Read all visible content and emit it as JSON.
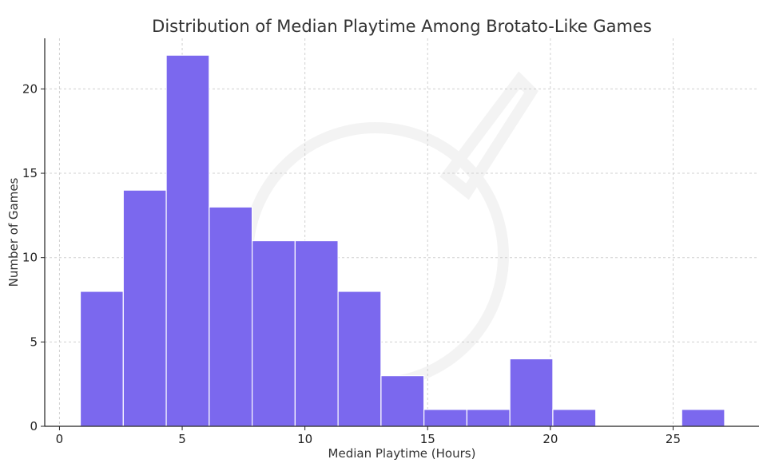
{
  "chart_data": {
    "type": "bar",
    "subtype": "histogram",
    "title": "Distribution of Median Playtime Among Brotato-Like Games",
    "xlabel": "Median Playtime (Hours)",
    "ylabel": "Number of Games",
    "bin_edges": [
      0.85,
      2.6,
      4.35,
      6.1,
      7.85,
      9.6,
      11.35,
      13.1,
      14.85,
      16.6,
      18.35,
      20.1,
      21.85,
      23.6,
      25.35,
      27.1
    ],
    "values": [
      8,
      14,
      22,
      13,
      11,
      11,
      8,
      3,
      1,
      1,
      4,
      1,
      0,
      0,
      1
    ],
    "xlim": [
      -0.6,
      28.5
    ],
    "ylim": [
      0,
      23
    ],
    "xticks": [
      0,
      5,
      10,
      15,
      20,
      25
    ],
    "yticks": [
      0,
      5,
      10,
      15,
      20
    ],
    "grid": true,
    "bar_color": "#7b68ee",
    "bar_edge_color": "#ffffff"
  }
}
